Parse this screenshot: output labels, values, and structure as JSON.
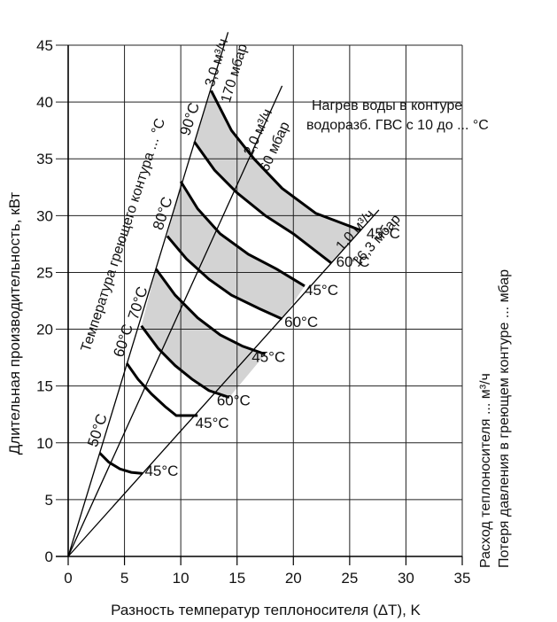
{
  "chart_data": {
    "type": "line",
    "title": "",
    "xlabel": "Разность температур теплоносителя (ΔT), K",
    "ylabel": "Длительная производительность, кВт",
    "xlim": [
      0,
      35
    ],
    "ylim": [
      0,
      45
    ],
    "xticks": [
      "0",
      "5",
      "10",
      "15",
      "20",
      "25",
      "30",
      "35"
    ],
    "yticks": [
      "0",
      "5",
      "10",
      "15",
      "20",
      "25",
      "30",
      "35",
      "40",
      "45"
    ],
    "grid": true,
    "right_label_1": "Расход теплоносителя ... м³/ч",
    "right_label_2": "Потеря давления в греющем контуре ... мбар",
    "annotation_top_1": "Нагрев воды в контуре",
    "annotation_top_2": "водоразб. ГВС с 10 до ... °C",
    "rotated_label": "Температура греющего контура ... °C",
    "flow_lines": [
      {
        "flow": "3,0 м³/ч",
        "pressure": "170 мбар",
        "slope": 3.25
      },
      {
        "flow": "2,0 м³/ч",
        "pressure": "60 мбар",
        "slope": 2.18
      },
      {
        "flow": "1,0 м³/ч",
        "pressure": "16,3 мбар",
        "slope": 1.105
      }
    ],
    "curves": [
      {
        "temp": "50°C",
        "target": "45°C",
        "points": [
          [
            2.8,
            9.1
          ],
          [
            3.6,
            8.3
          ],
          [
            4.6,
            7.7
          ],
          [
            5.6,
            7.4
          ],
          [
            6.6,
            7.3
          ]
        ]
      },
      {
        "temp": "60°C",
        "target": "45°C",
        "points": [
          [
            5.2,
            17.0
          ],
          [
            6.2,
            15.6
          ],
          [
            7.4,
            14.3
          ],
          [
            8.6,
            13.2
          ],
          [
            9.6,
            12.4
          ],
          [
            11.5,
            12.4
          ]
        ]
      },
      {
        "temp": "70°C",
        "target": "60°C",
        "points": [
          [
            6.5,
            20.3
          ],
          [
            8.0,
            18.3
          ],
          [
            9.5,
            16.8
          ],
          [
            11.0,
            15.6
          ],
          [
            12.5,
            14.6
          ],
          [
            14.3,
            14.0
          ],
          [
            14.3,
            14.0
          ]
        ]
      },
      {
        "temp": "70°C",
        "target": "45°C",
        "points": [
          [
            7.8,
            25.3
          ],
          [
            9.5,
            23.0
          ],
          [
            11.5,
            21.0
          ],
          [
            13.5,
            19.5
          ],
          [
            15.5,
            18.5
          ],
          [
            17.5,
            17.8
          ]
        ]
      },
      {
        "temp": "80°C",
        "target": "60°C",
        "points": [
          [
            8.8,
            28.2
          ],
          [
            10.5,
            26.2
          ],
          [
            12.5,
            24.4
          ],
          [
            14.5,
            23.0
          ],
          [
            17.0,
            21.8
          ],
          [
            19.0,
            20.9
          ]
        ]
      },
      {
        "temp": "80°C",
        "target": "45°C",
        "points": [
          [
            10.0,
            33.0
          ],
          [
            11.5,
            30.6
          ],
          [
            13.5,
            28.4
          ],
          [
            16.0,
            26.6
          ],
          [
            18.5,
            25.3
          ],
          [
            21.0,
            23.8
          ]
        ]
      },
      {
        "temp": "90°C",
        "target": "60°C",
        "points": [
          [
            11.2,
            36.5
          ],
          [
            13.0,
            34.0
          ],
          [
            15.0,
            32.0
          ],
          [
            17.5,
            30.0
          ],
          [
            20.0,
            28.4
          ],
          [
            23.4,
            25.8
          ]
        ]
      },
      {
        "temp": "90°C",
        "target": "45°C",
        "points": [
          [
            12.7,
            41.0
          ],
          [
            14.5,
            37.5
          ],
          [
            16.5,
            35.0
          ],
          [
            19.0,
            32.4
          ],
          [
            22.0,
            30.2
          ],
          [
            26.0,
            28.7
          ]
        ]
      }
    ],
    "shaded_bands": [
      [
        2,
        3
      ],
      [
        4,
        5
      ],
      [
        6,
        7
      ]
    ],
    "temp_labels": [
      {
        "text": "50°C",
        "x": 2.7,
        "y": 9.4
      },
      {
        "text": "60°C",
        "x": 5.0,
        "y": 17.3
      },
      {
        "text": "70°C",
        "x": 6.3,
        "y": 20.6
      },
      {
        "text": "80°C",
        "x": 8.5,
        "y": 28.5
      },
      {
        "text": "90°C",
        "x": 10.9,
        "y": 36.8
      }
    ],
    "end_labels": [
      {
        "text": "45°C",
        "x": 6.8,
        "y": 7.1
      },
      {
        "text": "45°C",
        "x": 11.3,
        "y": 11.3
      },
      {
        "text": "60°C",
        "x": 13.2,
        "y": 13.3
      },
      {
        "text": "45°C",
        "x": 16.3,
        "y": 17.1
      },
      {
        "text": "60°C",
        "x": 19.2,
        "y": 20.2
      },
      {
        "text": "45°C",
        "x": 21.0,
        "y": 23.0
      },
      {
        "text": "60°C",
        "x": 23.8,
        "y": 25.5
      },
      {
        "text": "45°C",
        "x": 26.5,
        "y": 28.0
      }
    ]
  }
}
